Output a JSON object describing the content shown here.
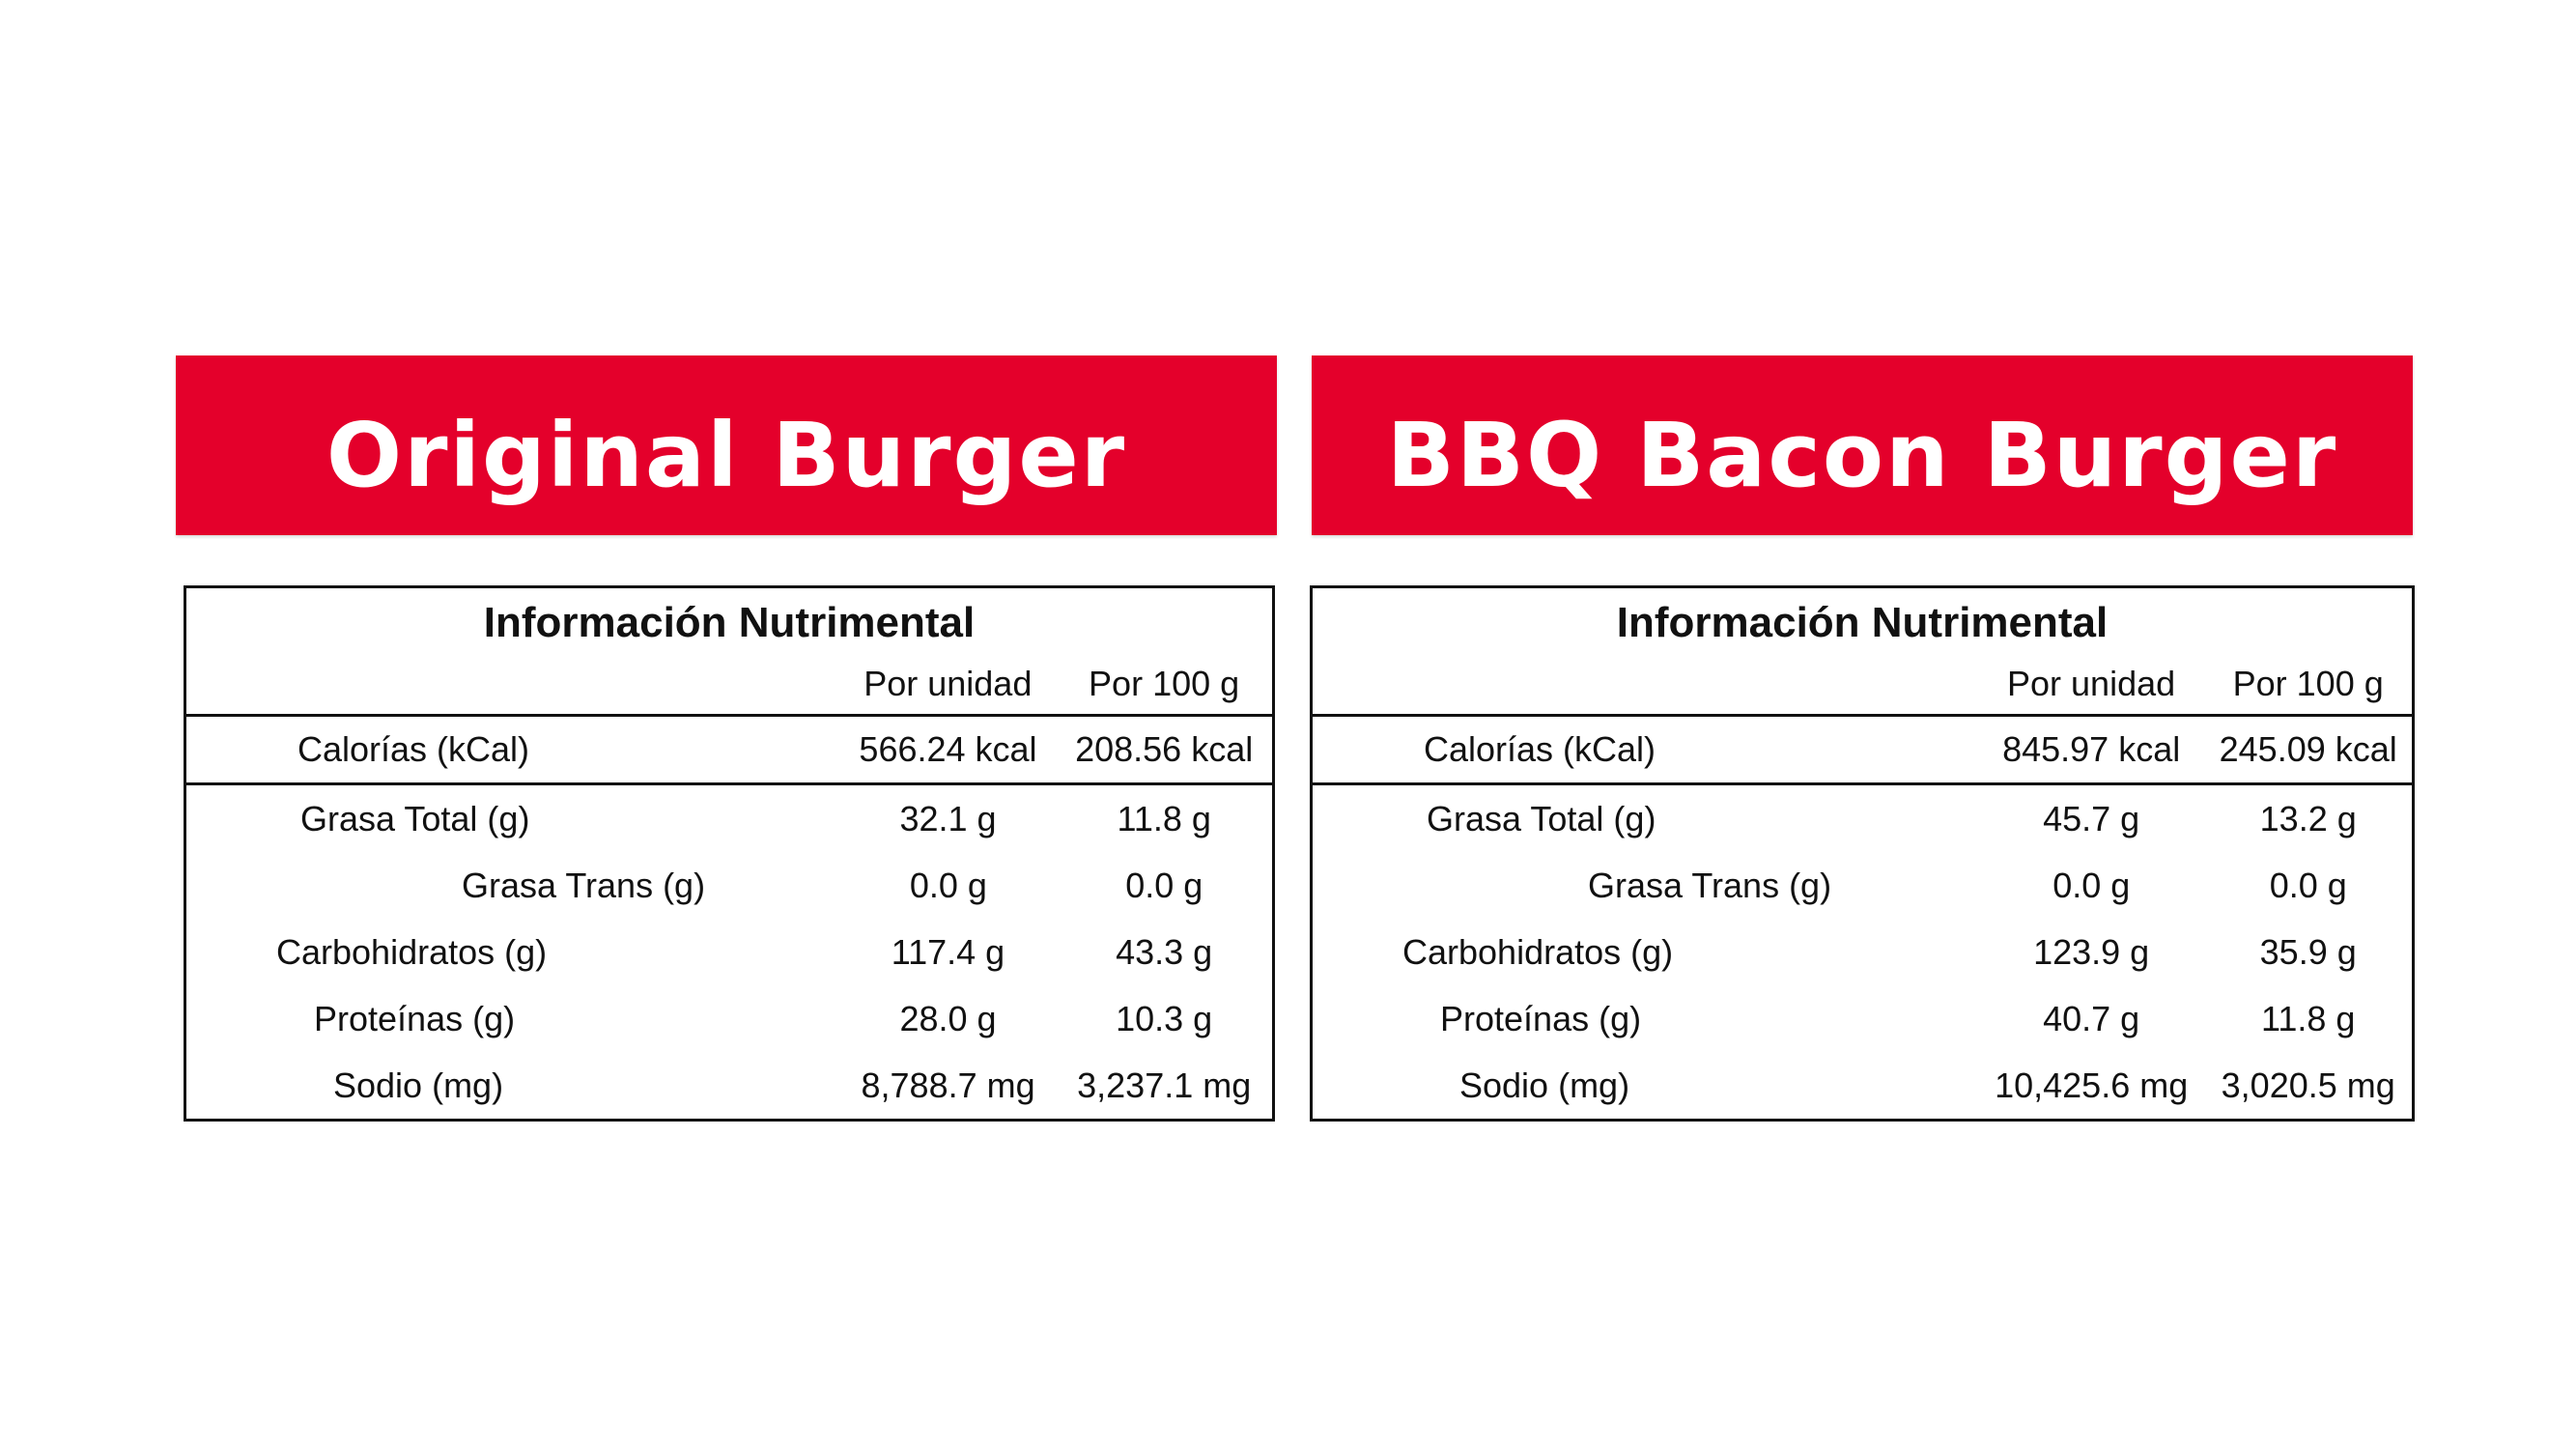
{
  "panels": [
    {
      "title": "Original Burger",
      "table_title": "Información Nutrimental",
      "columns": [
        "Por unidad",
        "Por 100 g"
      ],
      "rows": [
        {
          "label": "Calorías (kCal)",
          "per_unit": "566.24 kcal",
          "per_100g": "208.56 kcal"
        },
        {
          "label": "Grasa Total (g)",
          "per_unit": "32.1 g",
          "per_100g": "11.8 g"
        },
        {
          "label": "Grasa Trans (g)",
          "per_unit": "0.0 g",
          "per_100g": "0.0 g"
        },
        {
          "label": "Carbohidratos (g)",
          "per_unit": "117.4 g",
          "per_100g": "43.3 g"
        },
        {
          "label": "Proteínas (g)",
          "per_unit": "28.0 g",
          "per_100g": "10.3 g"
        },
        {
          "label": "Sodio (mg)",
          "per_unit": "8,788.7 mg",
          "per_100g": "3,237.1 mg"
        }
      ]
    },
    {
      "title": "BBQ Bacon Burger",
      "table_title": "Información Nutrimental",
      "columns": [
        "Por unidad",
        "Por 100 g"
      ],
      "rows": [
        {
          "label": "Calorías (kCal)",
          "per_unit": "845.97 kcal",
          "per_100g": "245.09 kcal"
        },
        {
          "label": "Grasa Total (g)",
          "per_unit": "45.7 g",
          "per_100g": "13.2 g"
        },
        {
          "label": "Grasa Trans (g)",
          "per_unit": "0.0 g",
          "per_100g": "0.0 g"
        },
        {
          "label": "Carbohidratos (g)",
          "per_unit": "123.9 g",
          "per_100g": "35.9 g"
        },
        {
          "label": "Proteínas (g)",
          "per_unit": "40.7 g",
          "per_100g": "11.8 g"
        },
        {
          "label": "Sodio (mg)",
          "per_unit": "10,425.6 mg",
          "per_100g": "3,020.5 mg"
        }
      ]
    }
  ],
  "colors": {
    "banner": "#e4002b",
    "banner_text": "#ffffff",
    "table_border": "#111111"
  }
}
